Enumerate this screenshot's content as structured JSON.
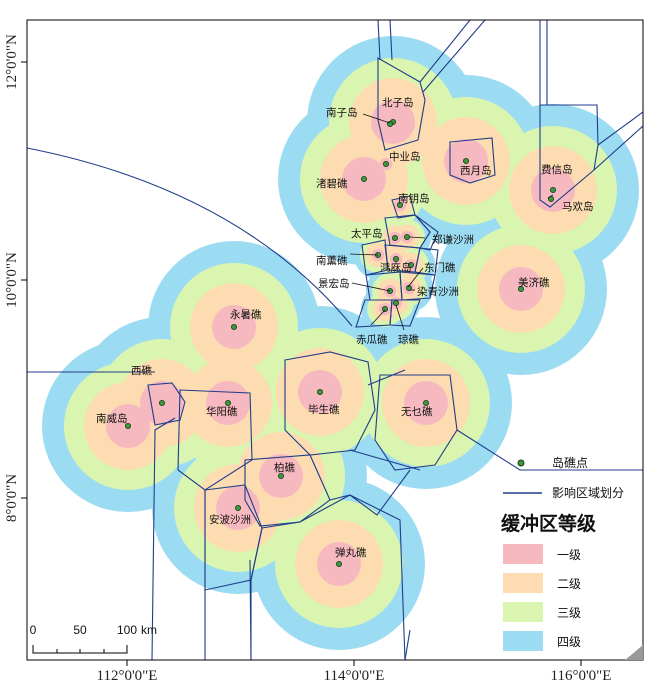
{
  "colors": {
    "level1": "#f7b9c0",
    "level2": "#fcdcb0",
    "level3": "#d9f5b0",
    "level4": "#9cdcf2",
    "boundary": "#1f3d8a",
    "point_fill": "#3a9a3a",
    "point_stroke": "#1a3a1a"
  },
  "axes": {
    "x_ticks": [
      "112°0'0\"E",
      "114°0'0\"E",
      "116°0'0\"E"
    ],
    "y_ticks": [
      "12°0'0\"N",
      "10°0'0\"N",
      "8°0'0\"N"
    ]
  },
  "places": [
    "北子岛",
    "南子岛",
    "中业岛",
    "西月岛",
    "渚碧礁",
    "南钥岛",
    "费信岛",
    "马欢岛",
    "太平岛",
    "郑谦沙洲",
    "南薰礁",
    "鸿庥岛",
    "东门礁",
    "景宏岛",
    "染青沙洲",
    "美济礁",
    "永暑礁",
    "赤瓜礁",
    "琼礁",
    "西礁",
    "南威岛",
    "华阳礁",
    "毕生礁",
    "无乜礁",
    "柏礁",
    "安波沙洲",
    "弹丸礁"
  ],
  "legend": {
    "point_label": "岛礁点",
    "boundary_label": "影响区域划分",
    "title": "缓冲区等级",
    "levels": [
      "一级",
      "二级",
      "三级",
      "四级"
    ]
  },
  "scale_bar": {
    "ticks": [
      "0",
      "50",
      "100"
    ],
    "unit": "km"
  }
}
